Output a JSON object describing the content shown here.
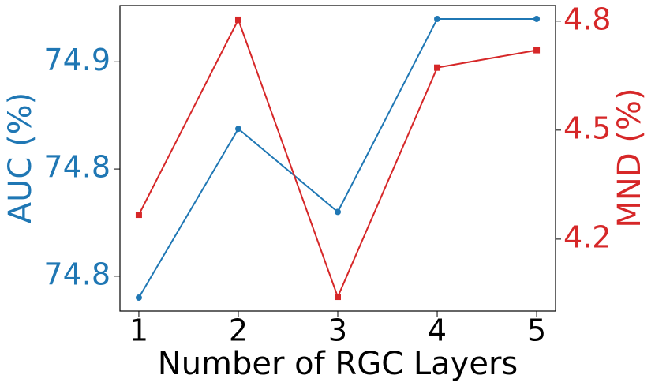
{
  "chart_data": {
    "type": "line",
    "x": [
      1,
      2,
      3,
      4,
      5
    ],
    "xlabel": "Number of RGC Layers",
    "ylabel": "AUC (%)",
    "y2label": "MND (%)",
    "xlim": [
      0.81,
      5.19
    ],
    "xticks": [
      1,
      2,
      3,
      4,
      5
    ],
    "ylim": [
      74.767,
      74.881
    ],
    "yticks": [
      {
        "value": 74.78,
        "label": "74.8"
      },
      {
        "value": 74.82,
        "label": "74.8"
      },
      {
        "value": 74.86,
        "label": "74.9"
      }
    ],
    "y2lim": [
      4.002,
      4.843
    ],
    "y2ticks": [
      4.2,
      4.5,
      4.8
    ],
    "series": [
      {
        "name": "AUC",
        "color": "#1f77b4",
        "marker": "circle",
        "values": [
          74.772,
          74.835,
          74.804,
          74.876,
          74.876
        ]
      },
      {
        "name": "MND",
        "color": "#d62728",
        "marker": "square",
        "axis": "y2",
        "values": [
          4.267,
          4.804,
          4.041,
          4.672,
          4.72
        ]
      }
    ]
  }
}
